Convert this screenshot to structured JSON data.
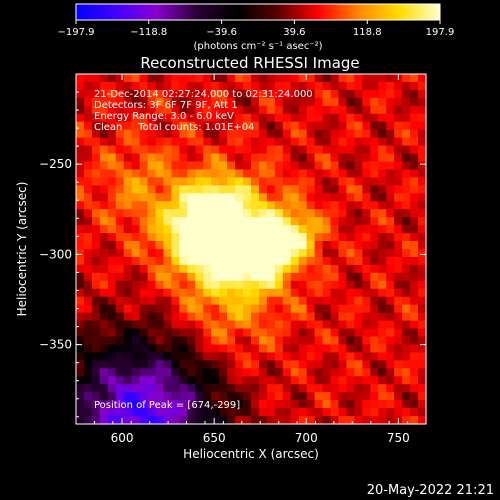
{
  "chart_data": {
    "type": "heatmap",
    "title": "Reconstructed RHESSI Image",
    "xlabel": "Heliocentric X (arcsec)",
    "ylabel": "Heliocentric Y (arcsec)",
    "xlim": [
      575,
      765
    ],
    "ylim": [
      -394,
      -200
    ],
    "x_ticks": [
      600,
      650,
      700,
      750
    ],
    "y_ticks": [
      -250,
      -300,
      -350
    ],
    "x_tick_labels": [
      "600",
      "650",
      "700",
      "750"
    ],
    "y_tick_labels": [
      "−250",
      "−300",
      "−350"
    ],
    "colorbar": {
      "range": [
        -197.9,
        197.9
      ],
      "tick_labels": [
        "−197.9",
        "−118.8",
        "−39.6",
        "39.6",
        "118.8",
        "197.9"
      ],
      "unit_label": "(photons cm⁻² s⁻¹ asec⁻²)"
    },
    "annotations": [
      "21-Dec-2014 02:27:24.000 to 02:31:24.000",
      "Detectors: 3F 6F 7F 9F, Att 1",
      "Energy Range: 3.0 - 6.0 keV",
      "Clean     Total counts: 1.01E+04"
    ],
    "peak_label": "Position of Peak = [674,-299]",
    "peak_position": [
      674,
      -299
    ],
    "sources": [
      {
        "x": 674,
        "y": -299,
        "value": 197.9,
        "sigma": 10
      },
      {
        "x": 643,
        "y": -287,
        "value": 150,
        "sigma": 13
      },
      {
        "x": 695,
        "y": -289,
        "value": 120,
        "sigma": 9
      },
      {
        "x": 660,
        "y": -293,
        "value": 185,
        "sigma": 22
      },
      {
        "x": 652,
        "y": -270,
        "value": 95,
        "sigma": 10
      },
      {
        "x": 610,
        "y": -262,
        "value": 80,
        "sigma": 18
      },
      {
        "x": 655,
        "y": -340,
        "value": 75,
        "sigma": 20
      }
    ],
    "background_level": 60,
    "colormap": [
      "#0000ff",
      "#4400ff",
      "#8800cc",
      "#2a0033",
      "#000000",
      "#5a0000",
      "#ff0000",
      "#ff8800",
      "#ffdd00",
      "#ffffcc"
    ],
    "grid": false,
    "footer_timestamp": "20-May-2022 21:21"
  }
}
